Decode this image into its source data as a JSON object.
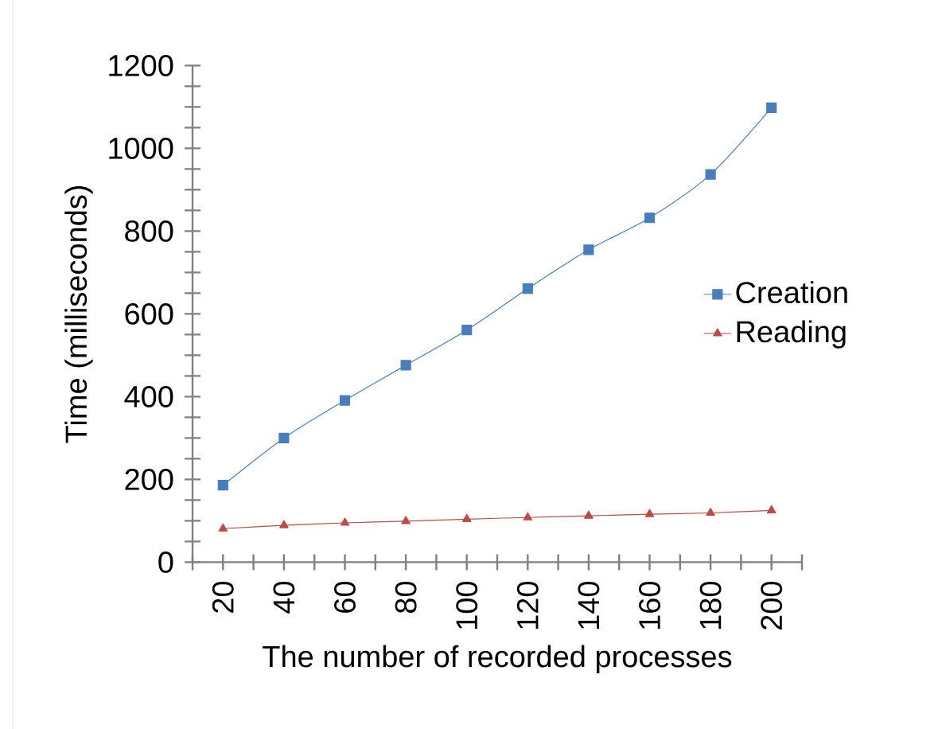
{
  "chart_data": {
    "type": "line",
    "xlabel": "The number of recorded processes",
    "ylabel": "Time (milliseconds)",
    "categories": [
      "20",
      "40",
      "60",
      "80",
      "100",
      "120",
      "140",
      "160",
      "180",
      "200"
    ],
    "series": [
      {
        "name": "Creation",
        "color": "#4a7ebb",
        "marker": "square",
        "values": [
          186,
          300,
          391,
          476,
          561,
          661,
          755,
          832,
          937,
          1098
        ]
      },
      {
        "name": "Reading",
        "color": "#be4b48",
        "marker": "triangle",
        "values": [
          81,
          89,
          95,
          99,
          104,
          108,
          112,
          116,
          119,
          125
        ]
      }
    ],
    "ylim": [
      0,
      1200
    ],
    "yticks": [
      0,
      200,
      400,
      600,
      800,
      1000,
      1200
    ],
    "grid": false,
    "legend": "right",
    "line_style": "solid"
  }
}
